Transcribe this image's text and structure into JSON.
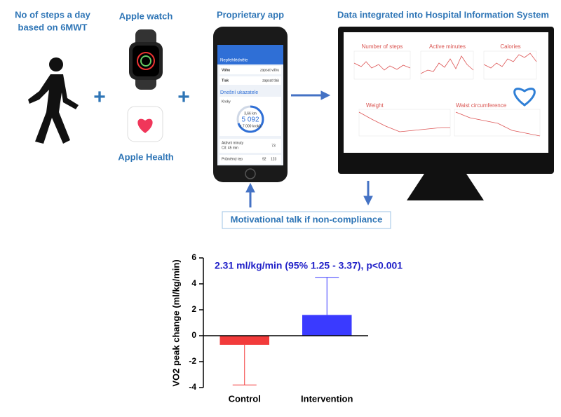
{
  "infographic": {
    "steps_label": [
      "No of steps a day",
      "based on 6MWT"
    ],
    "watch_label": "Apple watch",
    "health_label": "Apple Health",
    "app_label": "Proprietary app",
    "his_label": "Data integrated into Hospital Information System",
    "plus": "+",
    "motivation": "Motivational talk  if non-compliance",
    "phone": {
      "header": "Nepřehlédněte",
      "weight": "Váha",
      "weight_action": "zapsat váhu",
      "pressure": "Tlak",
      "pressure_action": "zapsat tlak",
      "today": "Dnešní ukazatele",
      "steps": "Kroky",
      "distance": "3,66 km",
      "step_count": "5 092",
      "goal": "z 7 000 kroků",
      "active": "Aktivní minuty",
      "active_goal": "Cíl: 45 min",
      "active_value": "73",
      "heart": "Průměrný tep",
      "heart_rest": "92",
      "heart_active": "123"
    },
    "monitor": {
      "charts": [
        "Number of steps",
        "Active minutes",
        "Calories",
        "Weight",
        "Waist circumference"
      ]
    }
  },
  "chart_data": {
    "type": "bar",
    "annotation": "2.31 ml/kg/min (95% 1.25 - 3.37), p<0.001",
    "ylabel": "VO2 peak change (ml/kg/min)",
    "categories": [
      "Control",
      "Intervention"
    ],
    "values": [
      -0.7,
      1.6
    ],
    "errors": [
      3.1,
      2.9
    ],
    "colors": [
      "#f23b3b",
      "#3a3aff"
    ],
    "ylim": [
      -4,
      6
    ],
    "yticks": [
      -4,
      -2,
      0,
      2,
      4,
      6
    ]
  }
}
